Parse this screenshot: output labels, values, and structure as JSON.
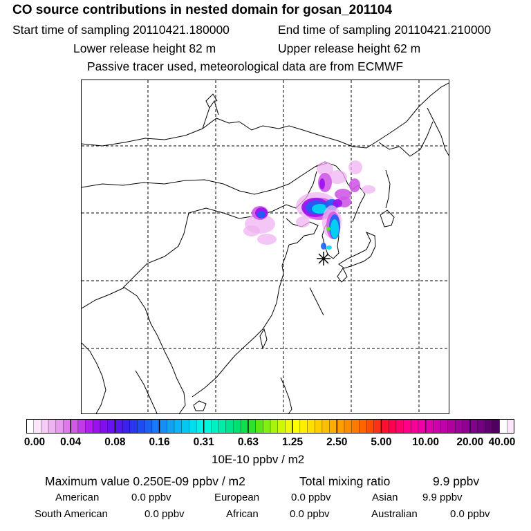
{
  "header": {
    "title": "CO  source contributions in nested domain for gosan_201104",
    "start_time": "Start time of sampling 20110421.180000",
    "end_time": "End time of sampling 20110421.210000",
    "lower_release": "Lower release height   82 m",
    "upper_release": "Upper release height   62 m",
    "tracer_note": "Passive tracer used, meteorological data are from ECMWF"
  },
  "colorbar": {
    "unit": "10E-10 ppbv / m2",
    "tick_labels": [
      "0.00",
      "0.04",
      "0.08",
      "0.16",
      "0.31",
      "0.63",
      "1.25",
      "2.50",
      "5.00",
      "10.00",
      "20.00",
      "40.00"
    ],
    "colors": [
      "#ffffff",
      "#fbe6fb",
      "#f5ccf5",
      "#efb3f2",
      "#e79aec",
      "#dc7ae8",
      "#d05ae6",
      "#c23be8",
      "#b020ea",
      "#9a10ee",
      "#8010f0",
      "#6a12f0",
      "#5218ee",
      "#3c20ec",
      "#2a36f0",
      "#1e4cf2",
      "#1a62f4",
      "#1878f6",
      "#168ef6",
      "#12a2f6",
      "#0ab6f4",
      "#04c8f2",
      "#00dcf0",
      "#00f0ec",
      "#00f8dc",
      "#00f0c2",
      "#00eaa8",
      "#00e48e",
      "#00e072",
      "#10e050",
      "#30e030",
      "#58e818",
      "#80f010",
      "#a8f40c",
      "#ccf808",
      "#eefa06",
      "#ffff00",
      "#ffee00",
      "#ffde00",
      "#ffce00",
      "#ffbe00",
      "#ffae00",
      "#ff9e00",
      "#ff8c00",
      "#ff7a00",
      "#ff6400",
      "#ff4c00",
      "#ff3018",
      "#ff1030",
      "#ff0050",
      "#ff006c",
      "#ff0088",
      "#f8009a",
      "#ec00a8",
      "#de00ac",
      "#d000ae",
      "#c000aa",
      "#b000a2",
      "#a0009c",
      "#900094",
      "#80008c",
      "#70007e",
      "#600070",
      "#500060"
    ],
    "colors_per_segment": 6
  },
  "summary": {
    "max_value": "Maximum value  0.250E-09 ppbv / m2",
    "total_mixing": "Total mixing ratio",
    "total_value": "9.9 ppbv",
    "regions": [
      {
        "name": "American",
        "value": "0.0 ppbv"
      },
      {
        "name": "European",
        "value": "0.0 ppbv"
      },
      {
        "name": "Asian",
        "value": "9.9 ppbv"
      },
      {
        "name": "South American",
        "value": "0.0 ppbv"
      },
      {
        "name": "African",
        "value": "0.0 ppbv"
      },
      {
        "name": "Australian",
        "value": "0.0 ppbv"
      }
    ]
  },
  "map": {
    "receptor_marker": "receptor-star",
    "plume_colors": {
      "light": "#efb3f2",
      "mid": "#d05ae6",
      "violet": "#9a10ee",
      "blue": "#1a62f4",
      "cyan": "#00dcf0",
      "green": "#58e818"
    }
  }
}
